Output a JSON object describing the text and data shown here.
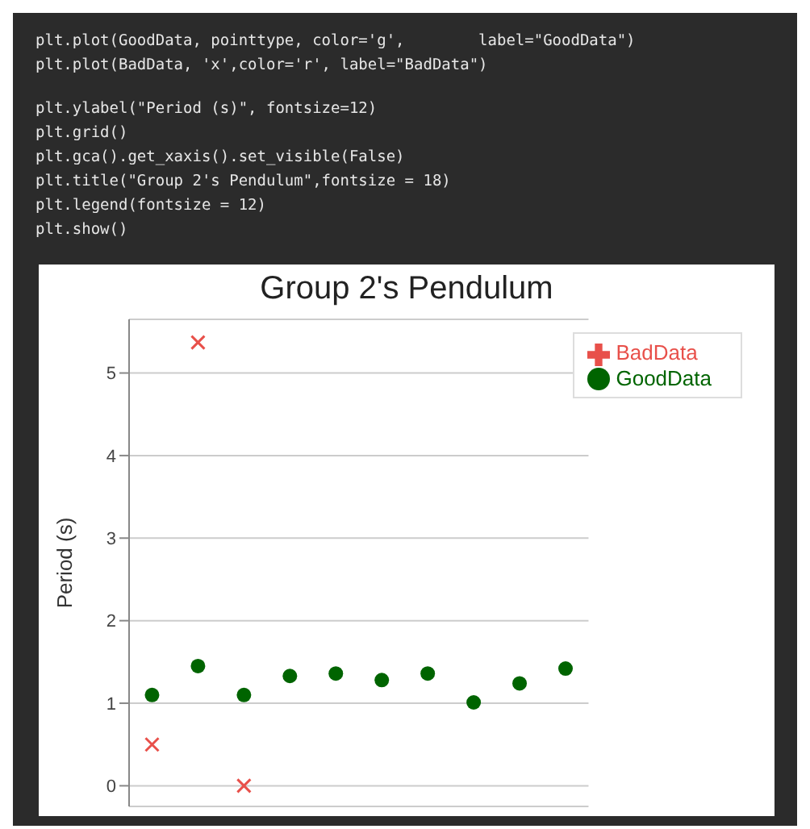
{
  "chart_data": {
    "type": "scatter",
    "title": "Group 2's Pendulum",
    "ylabel": "Period (s)",
    "annotations": [
      "plt.plot(GoodData, pointtype, color='g',        label=\"GoodData\")",
      "plt.plot(BadData, 'x',color='r', label=\"BadData\")",
      "plt.ylabel(\"Period (s)\", fontsize=12)",
      "plt.grid()",
      "plt.gca().get_xaxis().set_visible(False)",
      "plt.title(\"Group 2's Pendulum\",fontsize = 18)",
      "plt.legend(fontsize = 12)",
      "plt.show()"
    ],
    "categories": [
      null,
      null,
      null,
      null,
      null,
      null,
      null,
      null,
      null,
      null
    ],
    "series": [
      {
        "name": "GoodData",
        "color": "#006400",
        "marker": "circle",
        "values": [
          1.1,
          1.45,
          1.1,
          1.33,
          1.36,
          1.28,
          1.36,
          1.01,
          1.24,
          1.42
        ]
      },
      {
        "name": "BadData",
        "color": "#e8504a",
        "marker": "cross",
        "values": [
          0.5,
          5.37,
          0.0,
          null,
          null,
          null,
          null,
          null,
          null,
          null
        ]
      }
    ],
    "ylim": [
      -0.25,
      5.65
    ],
    "yticks": [
      0,
      1,
      2,
      3,
      4,
      5
    ],
    "grid": "y",
    "legend": "top right",
    "tick_labels": "y"
  }
}
